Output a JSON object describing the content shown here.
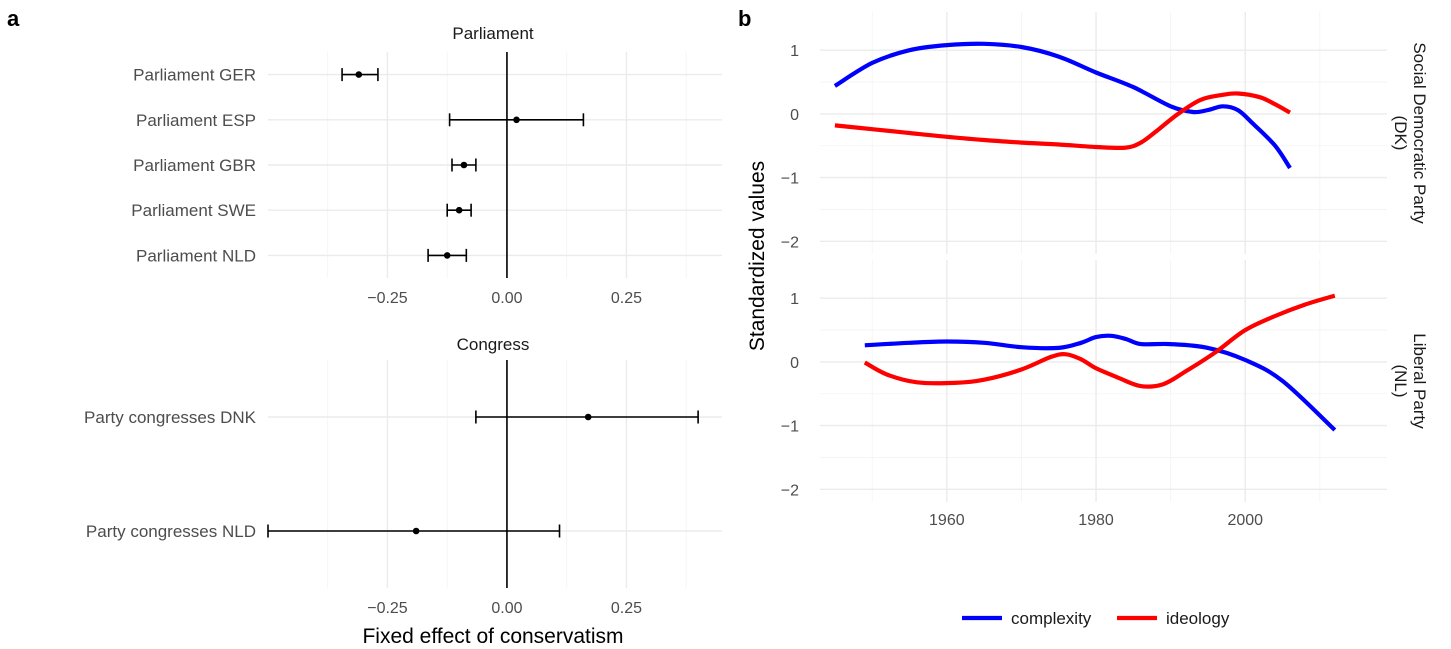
{
  "chart_data": [
    {
      "panel": "a",
      "type": "scatter",
      "subtype": "forest-plot",
      "xlabel": "Fixed effect of conservatism",
      "xticks": [
        -0.25,
        0.0,
        0.25
      ],
      "xtick_labels": [
        "−0.25",
        "0.00",
        "0.25"
      ],
      "xlim": [
        -0.5,
        0.45
      ],
      "reference_line": 0,
      "facets": [
        {
          "title": "Parliament",
          "rows": [
            {
              "label": "Parliament GER",
              "estimate": -0.31,
              "lower": -0.345,
              "upper": -0.27
            },
            {
              "label": "Parliament ESP",
              "estimate": 0.02,
              "lower": -0.12,
              "upper": 0.16
            },
            {
              "label": "Parliament GBR",
              "estimate": -0.09,
              "lower": -0.115,
              "upper": -0.065
            },
            {
              "label": "Parliament SWE",
              "estimate": -0.1,
              "lower": -0.125,
              "upper": -0.075
            },
            {
              "label": "Parliament NLD",
              "estimate": -0.125,
              "lower": -0.165,
              "upper": -0.085
            }
          ]
        },
        {
          "title": "Congress",
          "rows": [
            {
              "label": "Party congresses DNK",
              "estimate": 0.17,
              "lower": -0.065,
              "upper": 0.4
            },
            {
              "label": "Party congresses NLD",
              "estimate": -0.19,
              "lower": -0.5,
              "upper": 0.11
            }
          ]
        }
      ]
    },
    {
      "panel": "b",
      "type": "line",
      "ylabel": "Standardized values",
      "xticks": [
        1960,
        1980,
        2000
      ],
      "xtick_labels": [
        "1960",
        "1980",
        "2000"
      ],
      "xlim": [
        1943,
        2019
      ],
      "yticks": [
        -2,
        -1,
        0,
        1
      ],
      "ytick_labels": [
        "−2",
        "−1",
        "0",
        "1"
      ],
      "ylim": [
        -2.2,
        1.6
      ],
      "legend_position": "bottom",
      "legend": [
        {
          "name": "complexity",
          "color": "#0000ff"
        },
        {
          "name": "ideology",
          "color": "#ff0000"
        }
      ],
      "facets": [
        {
          "strip": [
            "Social Democratic Party",
            "(DK)"
          ],
          "series": [
            {
              "name": "complexity",
              "color": "#0000ff",
              "points": [
                [
                  1945,
                  0.44
                ],
                [
                  1950,
                  0.8
                ],
                [
                  1955,
                  1.0
                ],
                [
                  1960,
                  1.08
                ],
                [
                  1965,
                  1.1
                ],
                [
                  1970,
                  1.05
                ],
                [
                  1975,
                  0.9
                ],
                [
                  1980,
                  0.65
                ],
                [
                  1985,
                  0.42
                ],
                [
                  1990,
                  0.12
                ],
                [
                  1993,
                  0.03
                ],
                [
                  1995,
                  0.06
                ],
                [
                  1997,
                  0.12
                ],
                [
                  1999,
                  0.06
                ],
                [
                  2001,
                  -0.15
                ],
                [
                  2004,
                  -0.5
                ],
                [
                  2006,
                  -0.85
                ]
              ]
            },
            {
              "name": "ideology",
              "color": "#ff0000",
              "points": [
                [
                  1945,
                  -0.18
                ],
                [
                  1950,
                  -0.24
                ],
                [
                  1955,
                  -0.3
                ],
                [
                  1960,
                  -0.36
                ],
                [
                  1965,
                  -0.41
                ],
                [
                  1970,
                  -0.45
                ],
                [
                  1975,
                  -0.48
                ],
                [
                  1980,
                  -0.52
                ],
                [
                  1984,
                  -0.53
                ],
                [
                  1986,
                  -0.45
                ],
                [
                  1988,
                  -0.28
                ],
                [
                  1991,
                  0.0
                ],
                [
                  1994,
                  0.22
                ],
                [
                  1997,
                  0.3
                ],
                [
                  1999,
                  0.32
                ],
                [
                  2002,
                  0.26
                ],
                [
                  2004,
                  0.15
                ],
                [
                  2006,
                  0.02
                ]
              ]
            }
          ]
        },
        {
          "strip": [
            "Liberal Party",
            "(NL)"
          ],
          "series": [
            {
              "name": "complexity",
              "color": "#0000ff",
              "points": [
                [
                  1949,
                  0.26
                ],
                [
                  1955,
                  0.3
                ],
                [
                  1960,
                  0.32
                ],
                [
                  1965,
                  0.3
                ],
                [
                  1970,
                  0.23
                ],
                [
                  1975,
                  0.22
                ],
                [
                  1978,
                  0.3
                ],
                [
                  1980,
                  0.39
                ],
                [
                  1982,
                  0.41
                ],
                [
                  1984,
                  0.36
                ],
                [
                  1986,
                  0.28
                ],
                [
                  1990,
                  0.28
                ],
                [
                  1995,
                  0.22
                ],
                [
                  2000,
                  0.03
                ],
                [
                  2005,
                  -0.3
                ],
                [
                  2012,
                  -1.07
                ]
              ]
            },
            {
              "name": "ideology",
              "color": "#ff0000",
              "points": [
                [
                  1949,
                  -0.01
                ],
                [
                  1952,
                  -0.2
                ],
                [
                  1956,
                  -0.32
                ],
                [
                  1961,
                  -0.33
                ],
                [
                  1965,
                  -0.28
                ],
                [
                  1970,
                  -0.12
                ],
                [
                  1974,
                  0.08
                ],
                [
                  1976,
                  0.12
                ],
                [
                  1978,
                  0.04
                ],
                [
                  1980,
                  -0.1
                ],
                [
                  1983,
                  -0.25
                ],
                [
                  1986,
                  -0.38
                ],
                [
                  1989,
                  -0.35
                ],
                [
                  1992,
                  -0.15
                ],
                [
                  1996,
                  0.15
                ],
                [
                  2000,
                  0.5
                ],
                [
                  2004,
                  0.72
                ],
                [
                  2008,
                  0.9
                ],
                [
                  2012,
                  1.04
                ]
              ]
            }
          ]
        }
      ]
    }
  ]
}
